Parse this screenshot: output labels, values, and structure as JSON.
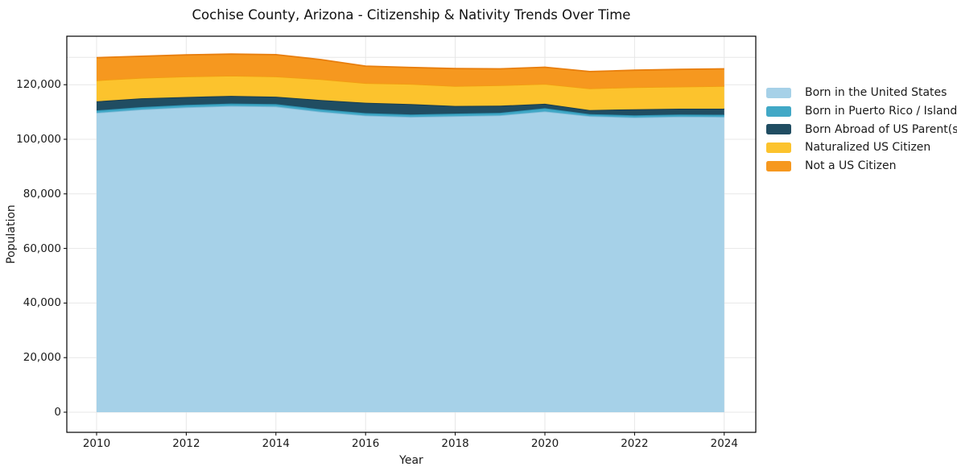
{
  "chart": {
    "title": "Cochise County, Arizona - Citizenship & Nativity Trends Over Time"
  },
  "axes": {
    "x": {
      "label": "Year",
      "ticks": [
        {
          "value": 2010,
          "label": "2010"
        },
        {
          "value": 2012,
          "label": "2012"
        },
        {
          "value": 2014,
          "label": "2014"
        },
        {
          "value": 2016,
          "label": "2016"
        },
        {
          "value": 2018,
          "label": "2018"
        },
        {
          "value": 2020,
          "label": "2020"
        },
        {
          "value": 2022,
          "label": "2022"
        },
        {
          "value": 2024,
          "label": "2024"
        }
      ]
    },
    "y": {
      "label": "Population",
      "ticks": [
        {
          "value": 0,
          "label": "0"
        },
        {
          "value": 20000,
          "label": "20,000"
        },
        {
          "value": 40000,
          "label": "40,000"
        },
        {
          "value": 60000,
          "label": "60,000"
        },
        {
          "value": 80000,
          "label": "80,000"
        },
        {
          "value": 100000,
          "label": "100,000"
        },
        {
          "value": 120000,
          "label": "120,000"
        }
      ],
      "grid_values": [
        0,
        20000,
        40000,
        60000,
        80000,
        100000,
        120000,
        130000
      ]
    }
  },
  "chart_data": {
    "type": "area",
    "stacked": true,
    "title": "Cochise County, Arizona - Citizenship & Nativity Trends Over Time",
    "xlabel": "Year",
    "ylabel": "Population",
    "x": [
      2010,
      2011,
      2012,
      2013,
      2014,
      2015,
      2016,
      2017,
      2018,
      2019,
      2020,
      2021,
      2022,
      2023,
      2024
    ],
    "xlim": [
      2009.3,
      2024.7
    ],
    "ylim": [
      -7400,
      137800
    ],
    "grid": true,
    "legend_position": "right",
    "series": [
      {
        "name": "Born in the United States",
        "color": "#a6d1e8",
        "edge": "#82bcd9",
        "values": [
          109700,
          110900,
          111700,
          112200,
          112000,
          110100,
          108700,
          108200,
          108500,
          108800,
          110200,
          108500,
          108000,
          108300,
          108200
        ]
      },
      {
        "name": "Born in Puerto Rico / Islands",
        "color": "#41a8c6",
        "edge": "#2b91b1",
        "values": [
          900,
          900,
          900,
          900,
          900,
          900,
          900,
          900,
          900,
          900,
          1200,
          700,
          800,
          800,
          800
        ]
      },
      {
        "name": "Born Abroad of US Parent(s)",
        "color": "#204d62",
        "edge": "#173a4b",
        "values": [
          3300,
          3200,
          2900,
          2800,
          2700,
          3400,
          3800,
          3800,
          2800,
          2600,
          1600,
          1500,
          2200,
          2100,
          2200
        ]
      },
      {
        "name": "Naturalized US Citizen",
        "color": "#fcc32d",
        "edge": "#f29d11",
        "values": [
          7700,
          7500,
          7500,
          7400,
          7400,
          7600,
          7200,
          7400,
          7300,
          7500,
          7300,
          7900,
          8100,
          8100,
          8300
        ]
      },
      {
        "name": "Not a US Citizen",
        "color": "#f6981f",
        "edge": "#e87e0d",
        "values": [
          8300,
          7900,
          7900,
          7900,
          8000,
          7200,
          6200,
          6000,
          6400,
          6000,
          6100,
          6200,
          6200,
          6300,
          6300
        ]
      }
    ]
  }
}
